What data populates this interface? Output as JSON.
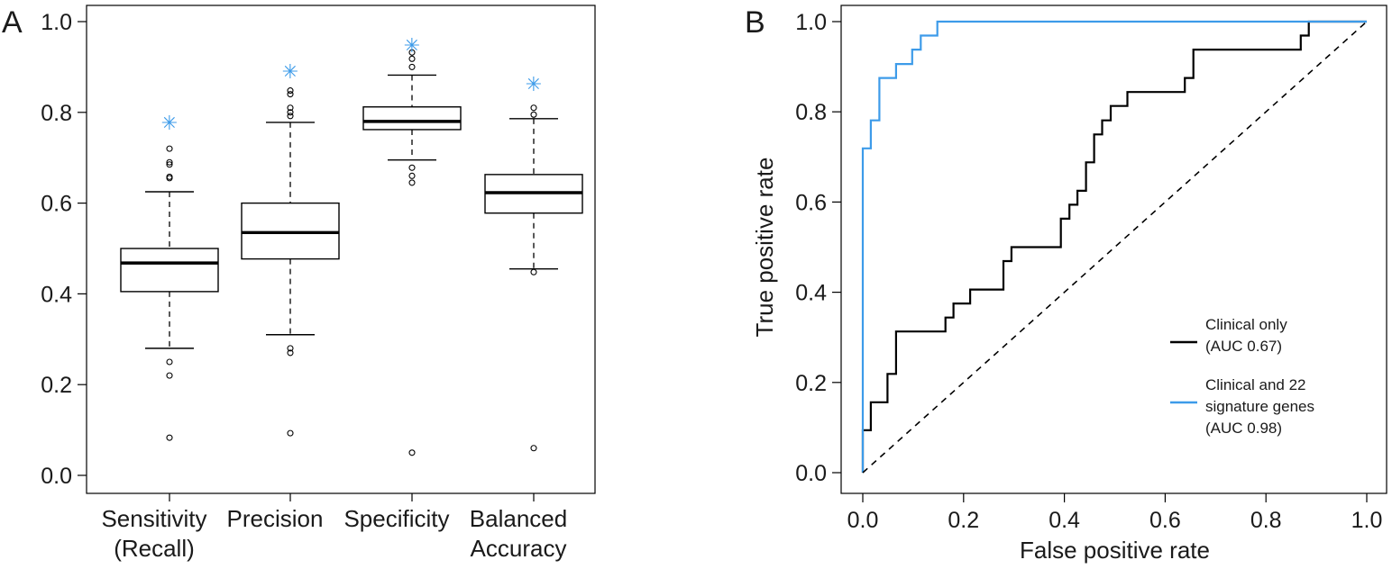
{
  "chart_data": [
    {
      "type": "box",
      "panel_label": "A",
      "categories": [
        [
          "Sensitivity",
          "(Recall)"
        ],
        [
          "Precision"
        ],
        [
          "Specificity"
        ],
        [
          "Balanced",
          "Accuracy"
        ]
      ],
      "ylim": [
        0,
        1.0
      ],
      "yticks": [
        "0.0",
        "0.2",
        "0.4",
        "0.6",
        "0.8",
        "1.0"
      ],
      "marker_color": "#3d9be9",
      "line_color": "#000000",
      "boxes": [
        {
          "q1": 0.405,
          "median": 0.468,
          "q3": 0.5,
          "whisker_low": 0.28,
          "whisker_high": 0.625,
          "outliers": [
            0.72,
            0.69,
            0.685,
            0.658,
            0.655,
            0.25,
            0.22,
            0.083
          ],
          "star": 0.78
        },
        {
          "q1": 0.477,
          "median": 0.535,
          "q3": 0.6,
          "whisker_low": 0.31,
          "whisker_high": 0.778,
          "outliers": [
            0.848,
            0.84,
            0.81,
            0.8,
            0.792,
            0.28,
            0.27,
            0.093
          ],
          "star": 0.893
        },
        {
          "q1": 0.762,
          "median": 0.78,
          "q3": 0.812,
          "whisker_low": 0.695,
          "whisker_high": 0.882,
          "outliers": [
            0.932,
            0.918,
            0.9,
            0.678,
            0.66,
            0.645,
            0.05
          ],
          "star": 0.95
        },
        {
          "q1": 0.578,
          "median": 0.623,
          "q3": 0.663,
          "whisker_low": 0.455,
          "whisker_high": 0.786,
          "outliers": [
            0.81,
            0.795,
            0.448,
            0.06
          ],
          "star": 0.865
        }
      ]
    },
    {
      "type": "line",
      "panel_label": "B",
      "xlabel": "False positive rate",
      "ylabel": "True positive rate",
      "xlim": [
        0,
        1.0
      ],
      "ylim": [
        0,
        1.0
      ],
      "xticks": [
        "0.0",
        "0.2",
        "0.4",
        "0.6",
        "0.8",
        "1.0"
      ],
      "yticks": [
        "0.0",
        "0.2",
        "0.4",
        "0.6",
        "0.8",
        "1.0"
      ],
      "legend_position": "right",
      "series": [
        {
          "name_lines": [
            "Clinical only",
            "(AUC 0.67)"
          ],
          "color": "#000000",
          "points": [
            [
              0,
              0
            ],
            [
              0,
              0.094
            ],
            [
              0.016,
              0.094
            ],
            [
              0.016,
              0.156
            ],
            [
              0.049,
              0.156
            ],
            [
              0.049,
              0.219
            ],
            [
              0.066,
              0.219
            ],
            [
              0.066,
              0.313
            ],
            [
              0.164,
              0.313
            ],
            [
              0.164,
              0.344
            ],
            [
              0.18,
              0.344
            ],
            [
              0.18,
              0.375
            ],
            [
              0.213,
              0.375
            ],
            [
              0.213,
              0.406
            ],
            [
              0.279,
              0.406
            ],
            [
              0.279,
              0.469
            ],
            [
              0.295,
              0.469
            ],
            [
              0.295,
              0.5
            ],
            [
              0.393,
              0.5
            ],
            [
              0.393,
              0.563
            ],
            [
              0.41,
              0.563
            ],
            [
              0.41,
              0.594
            ],
            [
              0.426,
              0.594
            ],
            [
              0.426,
              0.625
            ],
            [
              0.443,
              0.625
            ],
            [
              0.443,
              0.688
            ],
            [
              0.459,
              0.688
            ],
            [
              0.459,
              0.75
            ],
            [
              0.475,
              0.75
            ],
            [
              0.475,
              0.781
            ],
            [
              0.492,
              0.781
            ],
            [
              0.492,
              0.813
            ],
            [
              0.525,
              0.813
            ],
            [
              0.525,
              0.844
            ],
            [
              0.639,
              0.844
            ],
            [
              0.639,
              0.875
            ],
            [
              0.656,
              0.875
            ],
            [
              0.656,
              0.938
            ],
            [
              0.869,
              0.938
            ],
            [
              0.869,
              0.969
            ],
            [
              0.885,
              0.969
            ],
            [
              0.885,
              1.0
            ],
            [
              1.0,
              1.0
            ]
          ]
        },
        {
          "name_lines": [
            "Clinical and 22",
            "signature genes",
            "(AUC 0.98)"
          ],
          "color": "#3d9be9",
          "points": [
            [
              0,
              0
            ],
            [
              0,
              0.719
            ],
            [
              0.016,
              0.719
            ],
            [
              0.016,
              0.781
            ],
            [
              0.033,
              0.781
            ],
            [
              0.033,
              0.875
            ],
            [
              0.066,
              0.875
            ],
            [
              0.066,
              0.906
            ],
            [
              0.098,
              0.906
            ],
            [
              0.098,
              0.938
            ],
            [
              0.115,
              0.938
            ],
            [
              0.115,
              0.969
            ],
            [
              0.148,
              0.969
            ],
            [
              0.148,
              1.0
            ],
            [
              1.0,
              1.0
            ]
          ]
        },
        {
          "name_lines": [],
          "color": "#000000",
          "dashed": true,
          "points": [
            [
              0,
              0
            ],
            [
              1,
              1
            ]
          ]
        }
      ]
    }
  ]
}
